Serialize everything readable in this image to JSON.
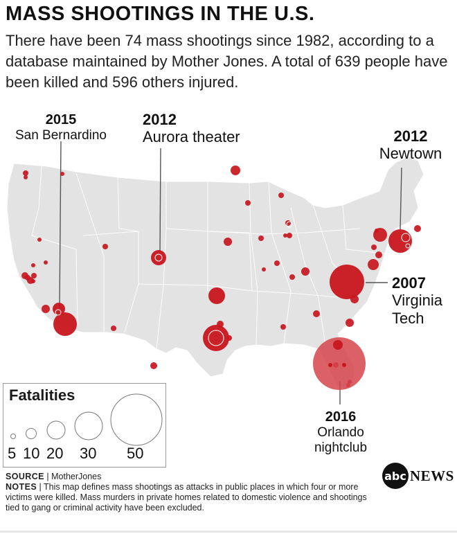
{
  "title": "MASS SHOOTINGS IN THE U.S.",
  "subtitle": "There have been 74 mass shootings since 1982, according to a database maintained by Mother Jones. A total of 639 people have been killed and 596 others injured.",
  "colors": {
    "marker_fill": "#c8161e",
    "orlando_fill": "#d6454c",
    "map_land": "#e3e3e3",
    "map_border": "#ffffff"
  },
  "callouts": {
    "san_bernardino": {
      "year": "2015",
      "name": "San Bernardino"
    },
    "aurora": {
      "year": "2012",
      "name": "Aurora theater"
    },
    "newtown": {
      "year": "2012",
      "name": "Newtown"
    },
    "virginia_tech": {
      "year": "2007",
      "name_line1": "Virginia",
      "name_line2": "Tech"
    },
    "orlando": {
      "year": "2016",
      "name_line1": "Orlando",
      "name_line2": "nightclub"
    }
  },
  "legend": {
    "title": "Fatalities",
    "items": [
      {
        "label": "5",
        "value": 5
      },
      {
        "label": "10",
        "value": 10
      },
      {
        "label": "20",
        "value": 20
      },
      {
        "label": "30",
        "value": 30
      },
      {
        "label": "50",
        "value": 50
      }
    ]
  },
  "footer": {
    "source_label": "SOURCE",
    "source_text": "MotherJones",
    "notes_label": "NOTES",
    "notes_text": "This map defines mass shootings as attacks in public places in which four or more victims were killed. Mass murders in private homes related to domestic violence and shootings tied to gang or criminal activity have been excluded."
  },
  "logo": {
    "abc": "abc",
    "news": "NEWS"
  }
}
